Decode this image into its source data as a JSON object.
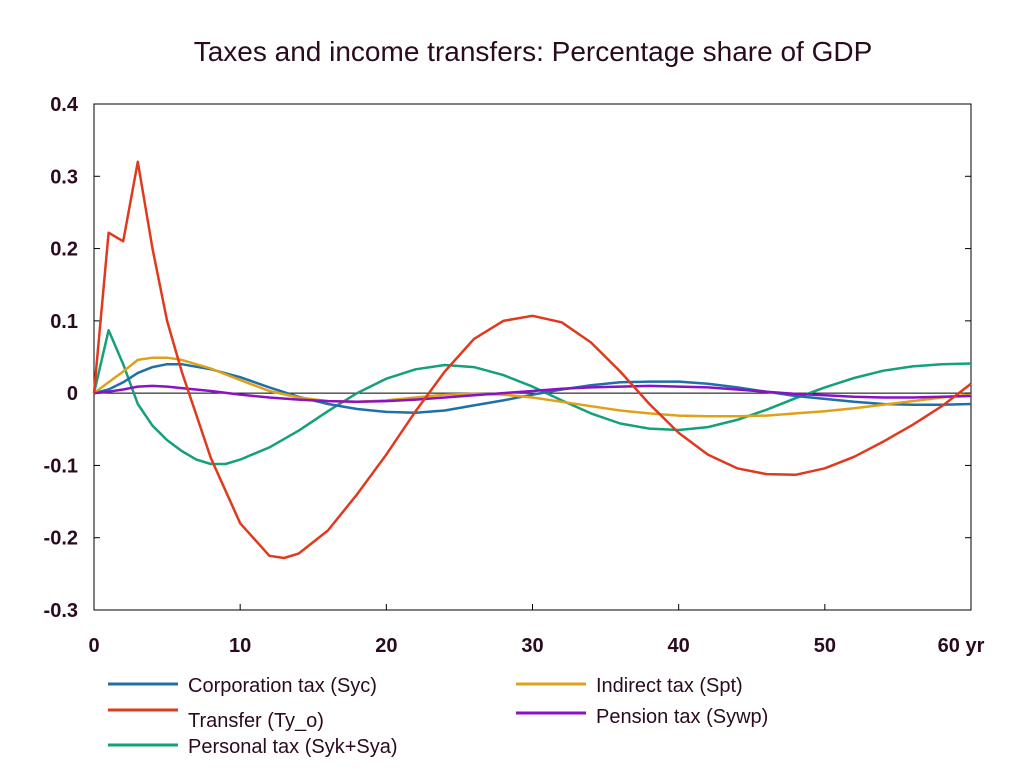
{
  "chart_data": {
    "type": "line",
    "title": "Taxes and income transfers: Percentage share of GDP",
    "xlabel": "",
    "ylabel": "",
    "xlim": [
      0,
      60
    ],
    "ylim": [
      -0.3,
      0.4
    ],
    "x_ticks": [
      0,
      10,
      20,
      30,
      40,
      50,
      60
    ],
    "x_tick_labels": [
      "0",
      "10",
      "20",
      "30",
      "40",
      "50",
      "60 yr"
    ],
    "y_ticks": [
      -0.3,
      -0.2,
      -0.1,
      0,
      0.1,
      0.2,
      0.3,
      0.4
    ],
    "y_tick_labels": [
      "-0.3",
      "-0.2",
      "-0.1",
      "0",
      "0.1",
      "0.2",
      "0.3",
      "0.4"
    ],
    "grid": false,
    "legend_position": "bottom",
    "series": [
      {
        "name": "Corporation tax (Syc)",
        "color": "#1f6fa8",
        "points": [
          [
            0,
            0
          ],
          [
            1,
            0.005
          ],
          [
            2,
            0.015
          ],
          [
            3,
            0.028
          ],
          [
            4,
            0.036
          ],
          [
            5,
            0.04
          ],
          [
            6,
            0.04
          ],
          [
            8,
            0.033
          ],
          [
            10,
            0.022
          ],
          [
            12,
            0.008
          ],
          [
            14,
            -0.005
          ],
          [
            16,
            -0.015
          ],
          [
            18,
            -0.022
          ],
          [
            20,
            -0.026
          ],
          [
            22,
            -0.027
          ],
          [
            24,
            -0.024
          ],
          [
            26,
            -0.017
          ],
          [
            28,
            -0.01
          ],
          [
            30,
            -0.002
          ],
          [
            32,
            0.005
          ],
          [
            34,
            0.011
          ],
          [
            36,
            0.015
          ],
          [
            38,
            0.016
          ],
          [
            40,
            0.016
          ],
          [
            42,
            0.013
          ],
          [
            44,
            0.008
          ],
          [
            46,
            0.002
          ],
          [
            48,
            -0.004
          ],
          [
            50,
            -0.008
          ],
          [
            52,
            -0.012
          ],
          [
            54,
            -0.015
          ],
          [
            56,
            -0.016
          ],
          [
            58,
            -0.016
          ],
          [
            60,
            -0.015
          ]
        ]
      },
      {
        "name": "Indirect tax (Spt)",
        "color": "#e0a11a",
        "points": [
          [
            0,
            0
          ],
          [
            1,
            0.015
          ],
          [
            2,
            0.03
          ],
          [
            3,
            0.046
          ],
          [
            4,
            0.049
          ],
          [
            5,
            0.049
          ],
          [
            6,
            0.046
          ],
          [
            8,
            0.034
          ],
          [
            10,
            0.018
          ],
          [
            12,
            0.003
          ],
          [
            14,
            -0.006
          ],
          [
            16,
            -0.011
          ],
          [
            18,
            -0.012
          ],
          [
            20,
            -0.01
          ],
          [
            22,
            -0.006
          ],
          [
            24,
            -0.002
          ],
          [
            26,
            -0.001
          ],
          [
            28,
            -0.002
          ],
          [
            30,
            -0.006
          ],
          [
            32,
            -0.012
          ],
          [
            34,
            -0.018
          ],
          [
            36,
            -0.024
          ],
          [
            38,
            -0.028
          ],
          [
            40,
            -0.031
          ],
          [
            42,
            -0.032
          ],
          [
            44,
            -0.032
          ],
          [
            46,
            -0.031
          ],
          [
            48,
            -0.028
          ],
          [
            50,
            -0.025
          ],
          [
            52,
            -0.021
          ],
          [
            54,
            -0.016
          ],
          [
            56,
            -0.011
          ],
          [
            58,
            -0.006
          ],
          [
            60,
            -0.002
          ]
        ]
      },
      {
        "name": "Transfer (Ty_o)",
        "color": "#e03a1e",
        "points": [
          [
            0,
            0
          ],
          [
            1,
            0.222
          ],
          [
            2,
            0.21
          ],
          [
            3,
            0.32
          ],
          [
            4,
            0.2
          ],
          [
            5,
            0.1
          ],
          [
            6,
            0.03
          ],
          [
            8,
            -0.09
          ],
          [
            10,
            -0.18
          ],
          [
            12,
            -0.225
          ],
          [
            13,
            -0.228
          ],
          [
            14,
            -0.222
          ],
          [
            16,
            -0.19
          ],
          [
            18,
            -0.14
          ],
          [
            20,
            -0.085
          ],
          [
            22,
            -0.025
          ],
          [
            24,
            0.03
          ],
          [
            26,
            0.075
          ],
          [
            28,
            0.1
          ],
          [
            30,
            0.107
          ],
          [
            32,
            0.098
          ],
          [
            34,
            0.07
          ],
          [
            36,
            0.03
          ],
          [
            38,
            -0.015
          ],
          [
            40,
            -0.055
          ],
          [
            42,
            -0.085
          ],
          [
            44,
            -0.104
          ],
          [
            46,
            -0.112
          ],
          [
            48,
            -0.113
          ],
          [
            50,
            -0.104
          ],
          [
            52,
            -0.088
          ],
          [
            54,
            -0.067
          ],
          [
            56,
            -0.044
          ],
          [
            58,
            -0.018
          ],
          [
            60,
            0.013
          ]
        ]
      },
      {
        "name": "Pension tax (Sywp)",
        "color": "#8b12c4",
        "points": [
          [
            0,
            0
          ],
          [
            1,
            0.002
          ],
          [
            2,
            0.005
          ],
          [
            3,
            0.009
          ],
          [
            4,
            0.01
          ],
          [
            5,
            0.009
          ],
          [
            6,
            0.007
          ],
          [
            8,
            0.003
          ],
          [
            10,
            -0.002
          ],
          [
            12,
            -0.006
          ],
          [
            14,
            -0.009
          ],
          [
            16,
            -0.011
          ],
          [
            18,
            -0.012
          ],
          [
            20,
            -0.011
          ],
          [
            22,
            -0.009
          ],
          [
            24,
            -0.006
          ],
          [
            26,
            -0.003
          ],
          [
            28,
            0
          ],
          [
            30,
            0.003
          ],
          [
            32,
            0.006
          ],
          [
            34,
            0.008
          ],
          [
            36,
            0.009
          ],
          [
            38,
            0.01
          ],
          [
            40,
            0.009
          ],
          [
            42,
            0.008
          ],
          [
            44,
            0.005
          ],
          [
            46,
            0.002
          ],
          [
            48,
            -0.001
          ],
          [
            50,
            -0.003
          ],
          [
            52,
            -0.005
          ],
          [
            54,
            -0.006
          ],
          [
            56,
            -0.006
          ],
          [
            58,
            -0.005
          ],
          [
            60,
            -0.004
          ]
        ]
      },
      {
        "name": "Personal tax (Syk+Sya)",
        "color": "#14a07a",
        "points": [
          [
            0,
            0
          ],
          [
            1,
            0.087
          ],
          [
            2,
            0.04
          ],
          [
            3,
            -0.015
          ],
          [
            4,
            -0.045
          ],
          [
            5,
            -0.065
          ],
          [
            6,
            -0.08
          ],
          [
            7,
            -0.092
          ],
          [
            8,
            -0.098
          ],
          [
            9,
            -0.098
          ],
          [
            10,
            -0.092
          ],
          [
            12,
            -0.075
          ],
          [
            14,
            -0.052
          ],
          [
            16,
            -0.025
          ],
          [
            18,
            0
          ],
          [
            20,
            0.02
          ],
          [
            22,
            0.033
          ],
          [
            24,
            0.039
          ],
          [
            26,
            0.036
          ],
          [
            28,
            0.025
          ],
          [
            30,
            0.009
          ],
          [
            32,
            -0.01
          ],
          [
            34,
            -0.028
          ],
          [
            36,
            -0.042
          ],
          [
            38,
            -0.049
          ],
          [
            40,
            -0.051
          ],
          [
            42,
            -0.047
          ],
          [
            44,
            -0.037
          ],
          [
            46,
            -0.023
          ],
          [
            48,
            -0.007
          ],
          [
            50,
            0.008
          ],
          [
            52,
            0.021
          ],
          [
            54,
            0.031
          ],
          [
            56,
            0.037
          ],
          [
            58,
            0.04
          ],
          [
            60,
            0.041
          ]
        ]
      }
    ]
  }
}
